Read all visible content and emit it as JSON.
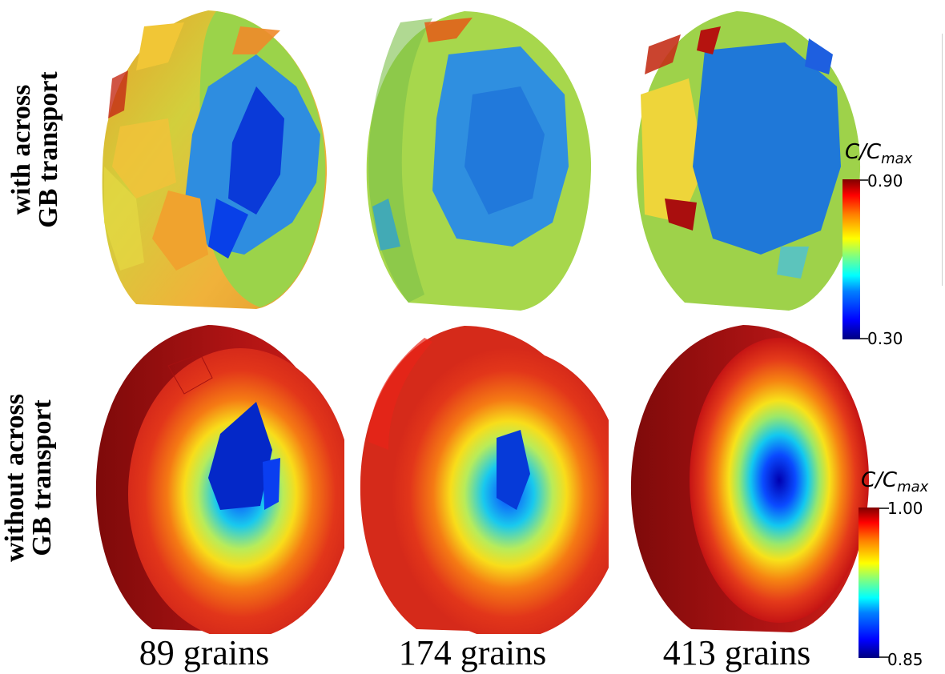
{
  "row_labels": {
    "top": {
      "line1": "with across",
      "line2": "GB transport"
    },
    "bottom": {
      "line1": "without across",
      "line2": "GB transport"
    }
  },
  "column_labels": [
    "89 grains",
    "174 grains",
    "413 grains"
  ],
  "colorbars": {
    "top": {
      "title_var": "C/C",
      "title_sub": "max",
      "max_label": "0.90",
      "min_label": "0.30"
    },
    "bottom": {
      "title_var": "C/C",
      "title_sub": "max",
      "max_label": "1.00",
      "min_label": "0.85"
    }
  },
  "colors": {
    "jet": [
      "#00007f",
      "#0000ff",
      "#0080ff",
      "#00ffff",
      "#80ff80",
      "#ffff00",
      "#ff8000",
      "#ff0000",
      "#7f0000"
    ],
    "top_surface": "#9bd34a",
    "top_core": "#2a7fd6",
    "bottom_surface": "#d7261e",
    "bottom_dark": "#8f0e0e"
  }
}
